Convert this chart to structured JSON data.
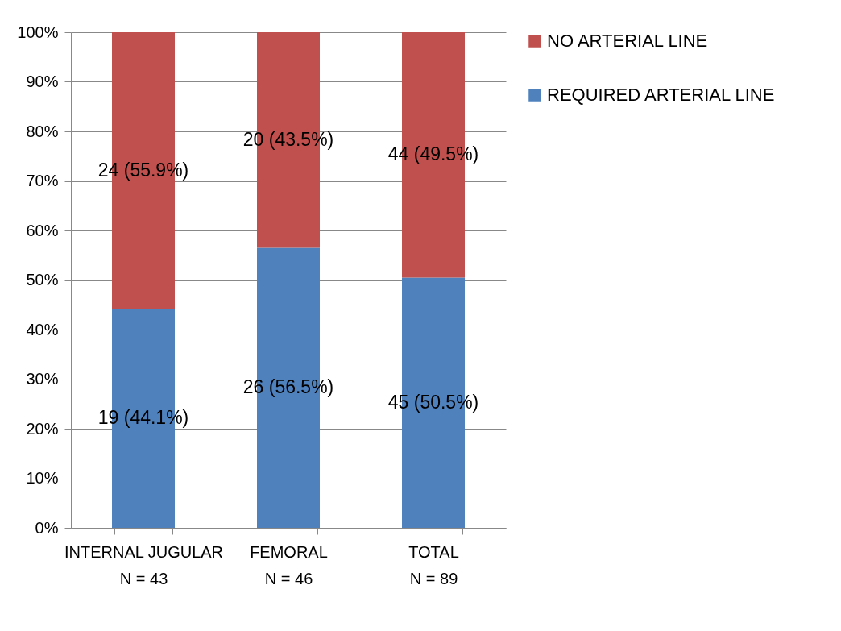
{
  "chart_data": {
    "type": "bar",
    "stacked": true,
    "categories": [
      "INTERNAL JUGULAR\nN = 43",
      "FEMORAL\nN = 46",
      "TOTAL\nN = 89"
    ],
    "series": [
      {
        "name": "REQUIRED ARTERIAL LINE",
        "color": "#4f81bd",
        "values": [
          44.1,
          56.5,
          50.5
        ],
        "value_labels": [
          "19 (44.1%)",
          "26 (56.5%)",
          "45 (50.5%)"
        ]
      },
      {
        "name": "NO ARTERIAL LINE",
        "color": "#c0504d",
        "values": [
          55.9,
          43.5,
          49.5
        ],
        "value_labels": [
          "24 (55.9%)",
          "20 (43.5%)",
          "44 (49.5%)"
        ]
      }
    ],
    "ylim": [
      0,
      100
    ],
    "yticks": [
      {
        "value": 0,
        "label": "0%"
      },
      {
        "value": 10,
        "label": "10%"
      },
      {
        "value": 20,
        "label": "20%"
      },
      {
        "value": 30,
        "label": "30%"
      },
      {
        "value": 40,
        "label": "40%"
      },
      {
        "value": 50,
        "label": "50%"
      },
      {
        "value": 60,
        "label": "60%"
      },
      {
        "value": 70,
        "label": "70%"
      },
      {
        "value": 80,
        "label": "80%"
      },
      {
        "value": 90,
        "label": "90%"
      },
      {
        "value": 100,
        "label": "100%"
      }
    ],
    "grid": "y",
    "legend": "right"
  }
}
